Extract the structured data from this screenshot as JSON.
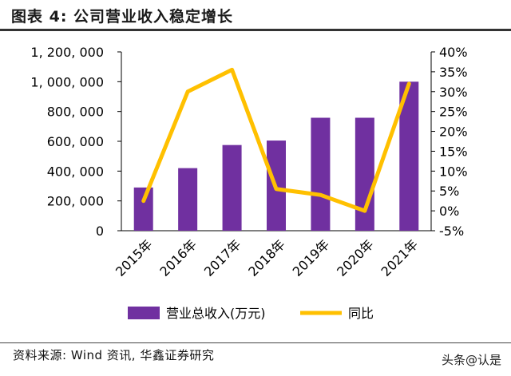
{
  "header": {
    "title": "图表 4: 公司营业收入稳定增长"
  },
  "footer": {
    "source": "资料来源: Wind 资讯, 华鑫证券研究",
    "watermark": "头条@认是"
  },
  "colors": {
    "bar": "#7030a0",
    "line": "#ffc000",
    "axis": "#000000"
  },
  "chart_data": {
    "type": "bar",
    "title": "",
    "categories": [
      "2015年",
      "2016年",
      "2017年",
      "2018年",
      "2019年",
      "2020年",
      "2021年"
    ],
    "series": [
      {
        "name": "营业总收入(万元)",
        "type": "bar",
        "axis": "left",
        "values": [
          290000,
          420000,
          575000,
          605000,
          758000,
          758000,
          1000000
        ]
      },
      {
        "name": "同比",
        "type": "line",
        "axis": "right",
        "values": [
          2.5,
          30,
          35.5,
          5.5,
          4,
          0,
          32
        ]
      }
    ],
    "y_left": {
      "min": 0,
      "max": 1200000,
      "ticks": [
        0,
        200000,
        400000,
        600000,
        800000,
        1000000,
        1200000
      ],
      "tick_labels": [
        "0",
        "200, 000",
        "400, 000",
        "600, 000",
        "800, 000",
        "1, 000, 000",
        "1, 200, 000"
      ]
    },
    "y_right": {
      "min": -5,
      "max": 40,
      "ticks": [
        -5,
        0,
        5,
        10,
        15,
        20,
        25,
        30,
        35,
        40
      ],
      "tick_labels": [
        "-5%",
        "0%",
        "5%",
        "10%",
        "15%",
        "20%",
        "25%",
        "30%",
        "35%",
        "40%"
      ]
    },
    "legend": {
      "position": "bottom",
      "entries": [
        "营业总收入(万元)",
        "同比"
      ]
    }
  }
}
